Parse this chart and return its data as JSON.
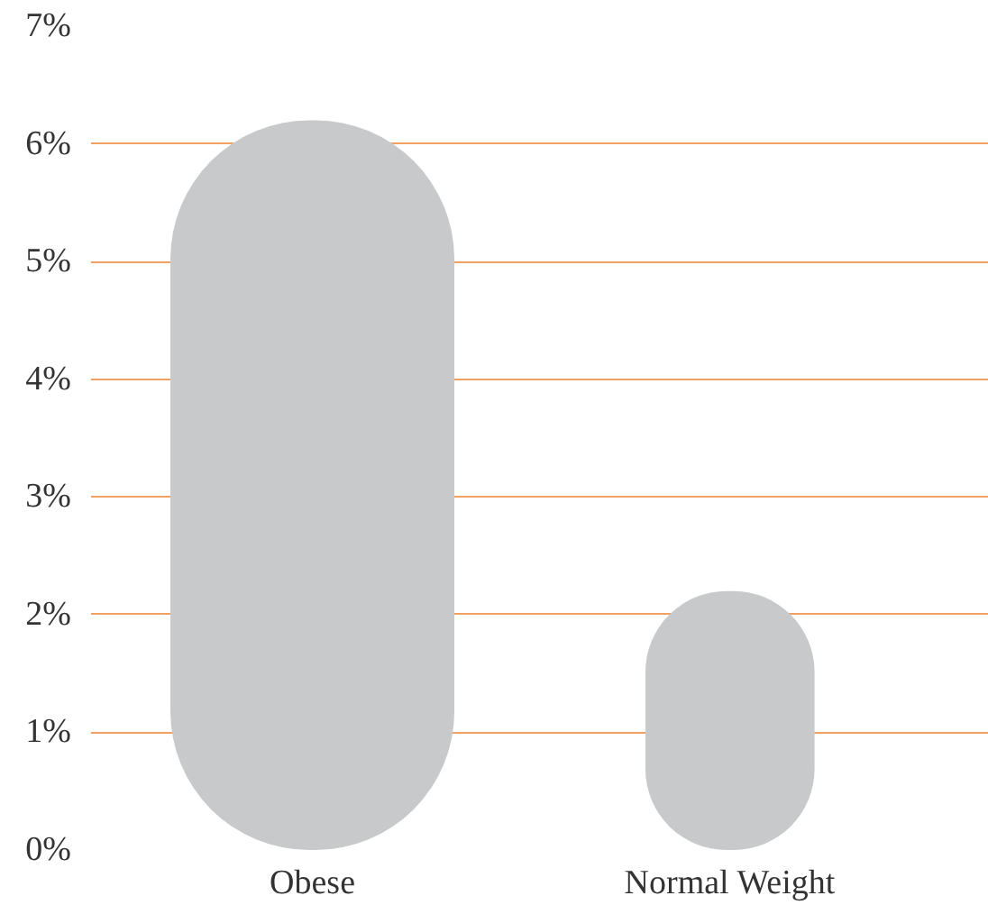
{
  "chart_data": {
    "type": "bar",
    "categories": [
      "Obese",
      "Normal Weight"
    ],
    "values": [
      6.2,
      2.2
    ],
    "color": "#c8c9cb",
    "ylim": [
      0,
      7
    ],
    "yticks": [
      {
        "value": 0,
        "label": "0%"
      },
      {
        "value": 1,
        "label": "1%"
      },
      {
        "value": 2,
        "label": "2%"
      },
      {
        "value": 3,
        "label": "3%"
      },
      {
        "value": 4,
        "label": "4%"
      },
      {
        "value": 5,
        "label": "5%"
      },
      {
        "value": 6,
        "label": "6%"
      },
      {
        "value": 7,
        "label": "7%"
      }
    ],
    "grid": "y"
  }
}
